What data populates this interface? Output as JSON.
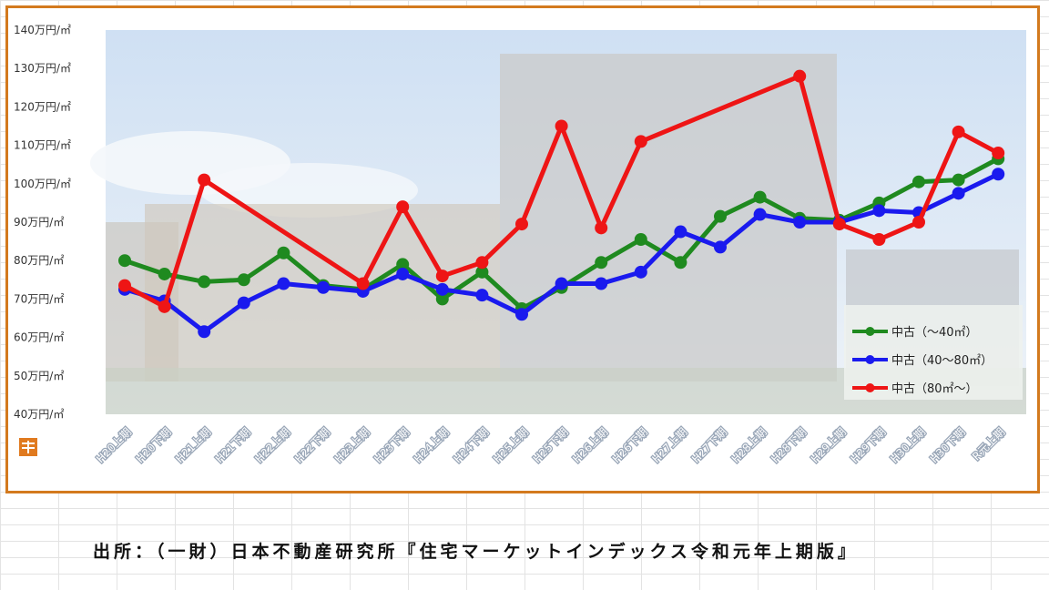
{
  "chart_data": {
    "type": "line",
    "categories": [
      "H20上期",
      "H20下期",
      "H21上期",
      "H21下期",
      "H22上期",
      "H22下期",
      "H23上期",
      "H23下期",
      "H24上期",
      "H24下期",
      "H25上期",
      "H25下期",
      "H26上期",
      "H26下期",
      "H27上期",
      "H27下期",
      "H28上期",
      "H28下期",
      "H29上期",
      "H29下期",
      "H30上期",
      "H30下期",
      "R元上期"
    ],
    "yticks": [
      "40万円/㎡",
      "50万円/㎡",
      "60万円/㎡",
      "70万円/㎡",
      "80万円/㎡",
      "90万円/㎡",
      "100万円/㎡",
      "110万円/㎡",
      "120万円/㎡",
      "130万円/㎡",
      "140万円/㎡"
    ],
    "ylim": [
      40,
      140
    ],
    "legend_position": "bottom-right",
    "grid": false,
    "series": [
      {
        "name": "中古（～40㎡）",
        "color": "#1f8a1f",
        "values": [
          80,
          76.5,
          74.5,
          75,
          82,
          73.5,
          72.5,
          79,
          70,
          77,
          67.5,
          73,
          79.5,
          85.5,
          79.5,
          91.5,
          96.5,
          91,
          90.5,
          95,
          100.5,
          101,
          106.5
        ]
      },
      {
        "name": "中古（40～80㎡）",
        "color": "#1a1aee",
        "values": [
          72.5,
          69.5,
          61.5,
          69,
          74,
          73,
          72,
          76.5,
          72.5,
          71,
          66,
          74,
          74,
          77,
          87.5,
          83.5,
          92,
          90,
          90,
          93,
          92.5,
          97.5,
          102.5
        ]
      },
      {
        "name": "中古（80㎡～）",
        "color": "#ee1515",
        "values": [
          73.5,
          68,
          101,
          null,
          null,
          null,
          74,
          94,
          76,
          79.5,
          89.5,
          115,
          88.5,
          111,
          null,
          null,
          null,
          128,
          89.5,
          85.5,
          90,
          113.5,
          108
        ]
      }
    ]
  },
  "source_text": "出所：（一財）日本不動産研究所『住宅マーケットインデックス令和元年上期版』"
}
